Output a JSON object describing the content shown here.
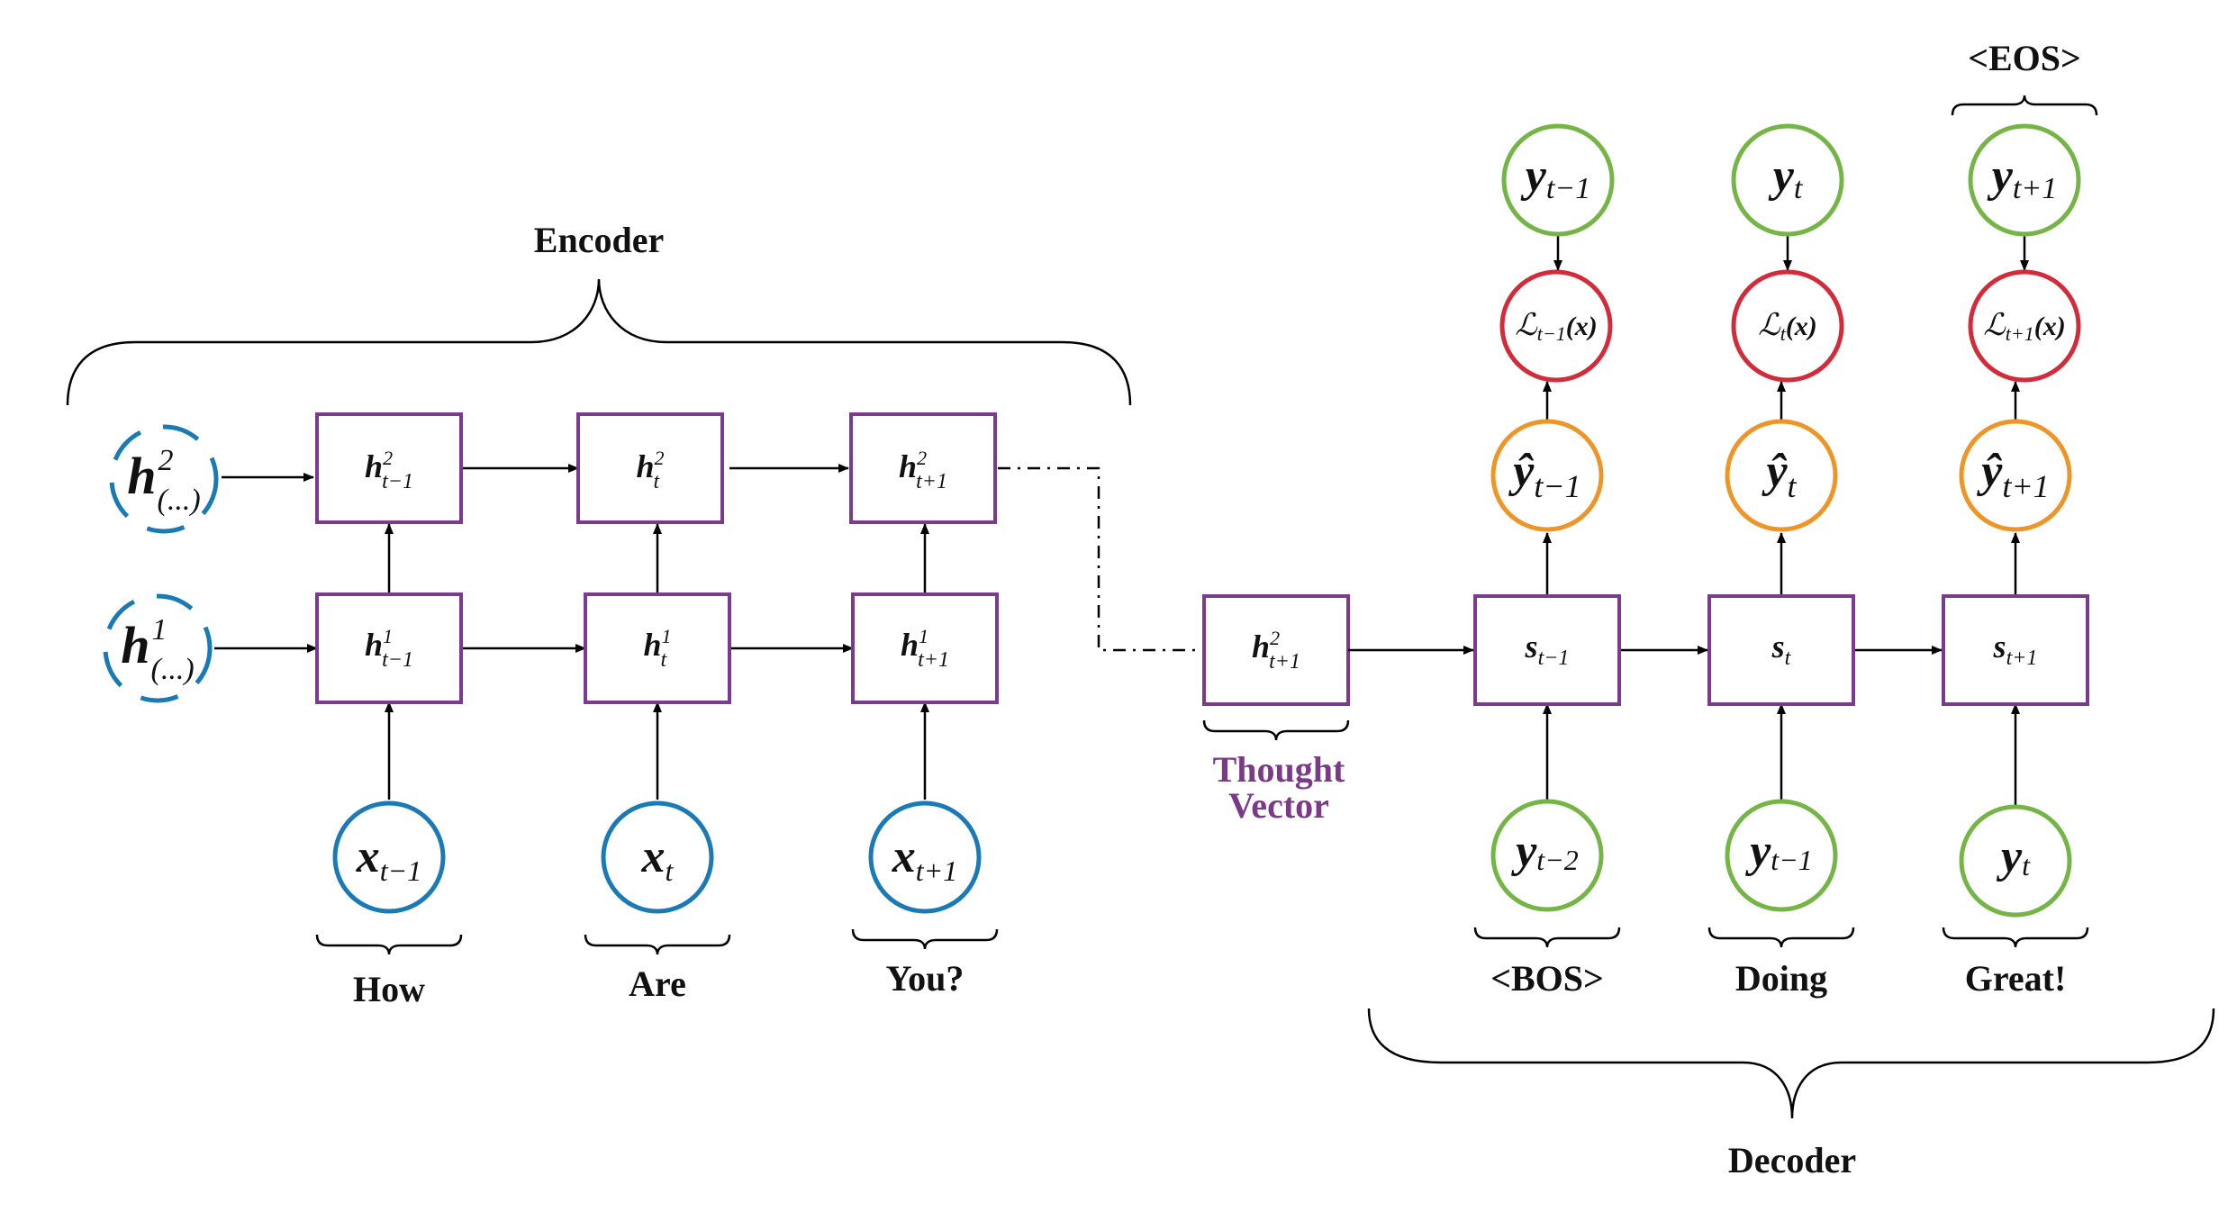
{
  "labels": {
    "encoder": "Encoder",
    "decoder": "Decoder",
    "thought_line1": "Thought",
    "thought_line2": "Vector",
    "eos": "<EOS>"
  },
  "colors": {
    "box_border": "#7b3a8e",
    "input_circle": "#1a7ab5",
    "output_circle": "#74b545",
    "prediction_circle": "#ee9527",
    "loss_circle": "#d22b3a",
    "thought_text": "#7a3a88"
  },
  "encoder": {
    "inputs": [
      {
        "var": "x",
        "sub": "t−1",
        "word": "How"
      },
      {
        "var": "x",
        "sub": "t",
        "word": "Are"
      },
      {
        "var": "x",
        "sub": "t+1",
        "word": "You?"
      }
    ],
    "layer1": [
      {
        "var": "h",
        "sup": "1",
        "sub": "t−1"
      },
      {
        "var": "h",
        "sup": "1",
        "sub": "t"
      },
      {
        "var": "h",
        "sup": "1",
        "sub": "t+1"
      }
    ],
    "layer2": [
      {
        "var": "h",
        "sup": "2",
        "sub": "t−1"
      },
      {
        "var": "h",
        "sup": "2",
        "sub": "t"
      },
      {
        "var": "h",
        "sup": "2",
        "sub": "t+1"
      }
    ],
    "initial_states": [
      {
        "var": "h",
        "sup": "2",
        "sub": "(...)"
      },
      {
        "var": "h",
        "sup": "1",
        "sub": "(...)"
      }
    ]
  },
  "thought_vector": {
    "var": "h",
    "sup": "2",
    "sub": "t+1"
  },
  "decoder": {
    "states": [
      {
        "var": "s",
        "sub": "t−1"
      },
      {
        "var": "s",
        "sub": "t"
      },
      {
        "var": "s",
        "sub": "t+1"
      }
    ],
    "inputs": [
      {
        "var": "y",
        "sub": "t−2",
        "word": "<BOS>"
      },
      {
        "var": "y",
        "sub": "t−1",
        "word": "Doing"
      },
      {
        "var": "y",
        "sub": "t",
        "word": "Great!"
      }
    ],
    "predictions": [
      {
        "var": "ŷ",
        "sub": "t−1"
      },
      {
        "var": "ŷ",
        "sub": "t"
      },
      {
        "var": "ŷ",
        "sub": "t+1"
      }
    ],
    "losses": [
      {
        "var": "ℒ",
        "sub": "t−1",
        "arg": "(x)"
      },
      {
        "var": "ℒ",
        "sub": "t",
        "arg": "(x)"
      },
      {
        "var": "ℒ",
        "sub": "t+1",
        "arg": "(x)"
      }
    ],
    "targets": [
      {
        "var": "y",
        "sub": "t−1"
      },
      {
        "var": "y",
        "sub": "t"
      },
      {
        "var": "y",
        "sub": "t+1"
      }
    ]
  }
}
